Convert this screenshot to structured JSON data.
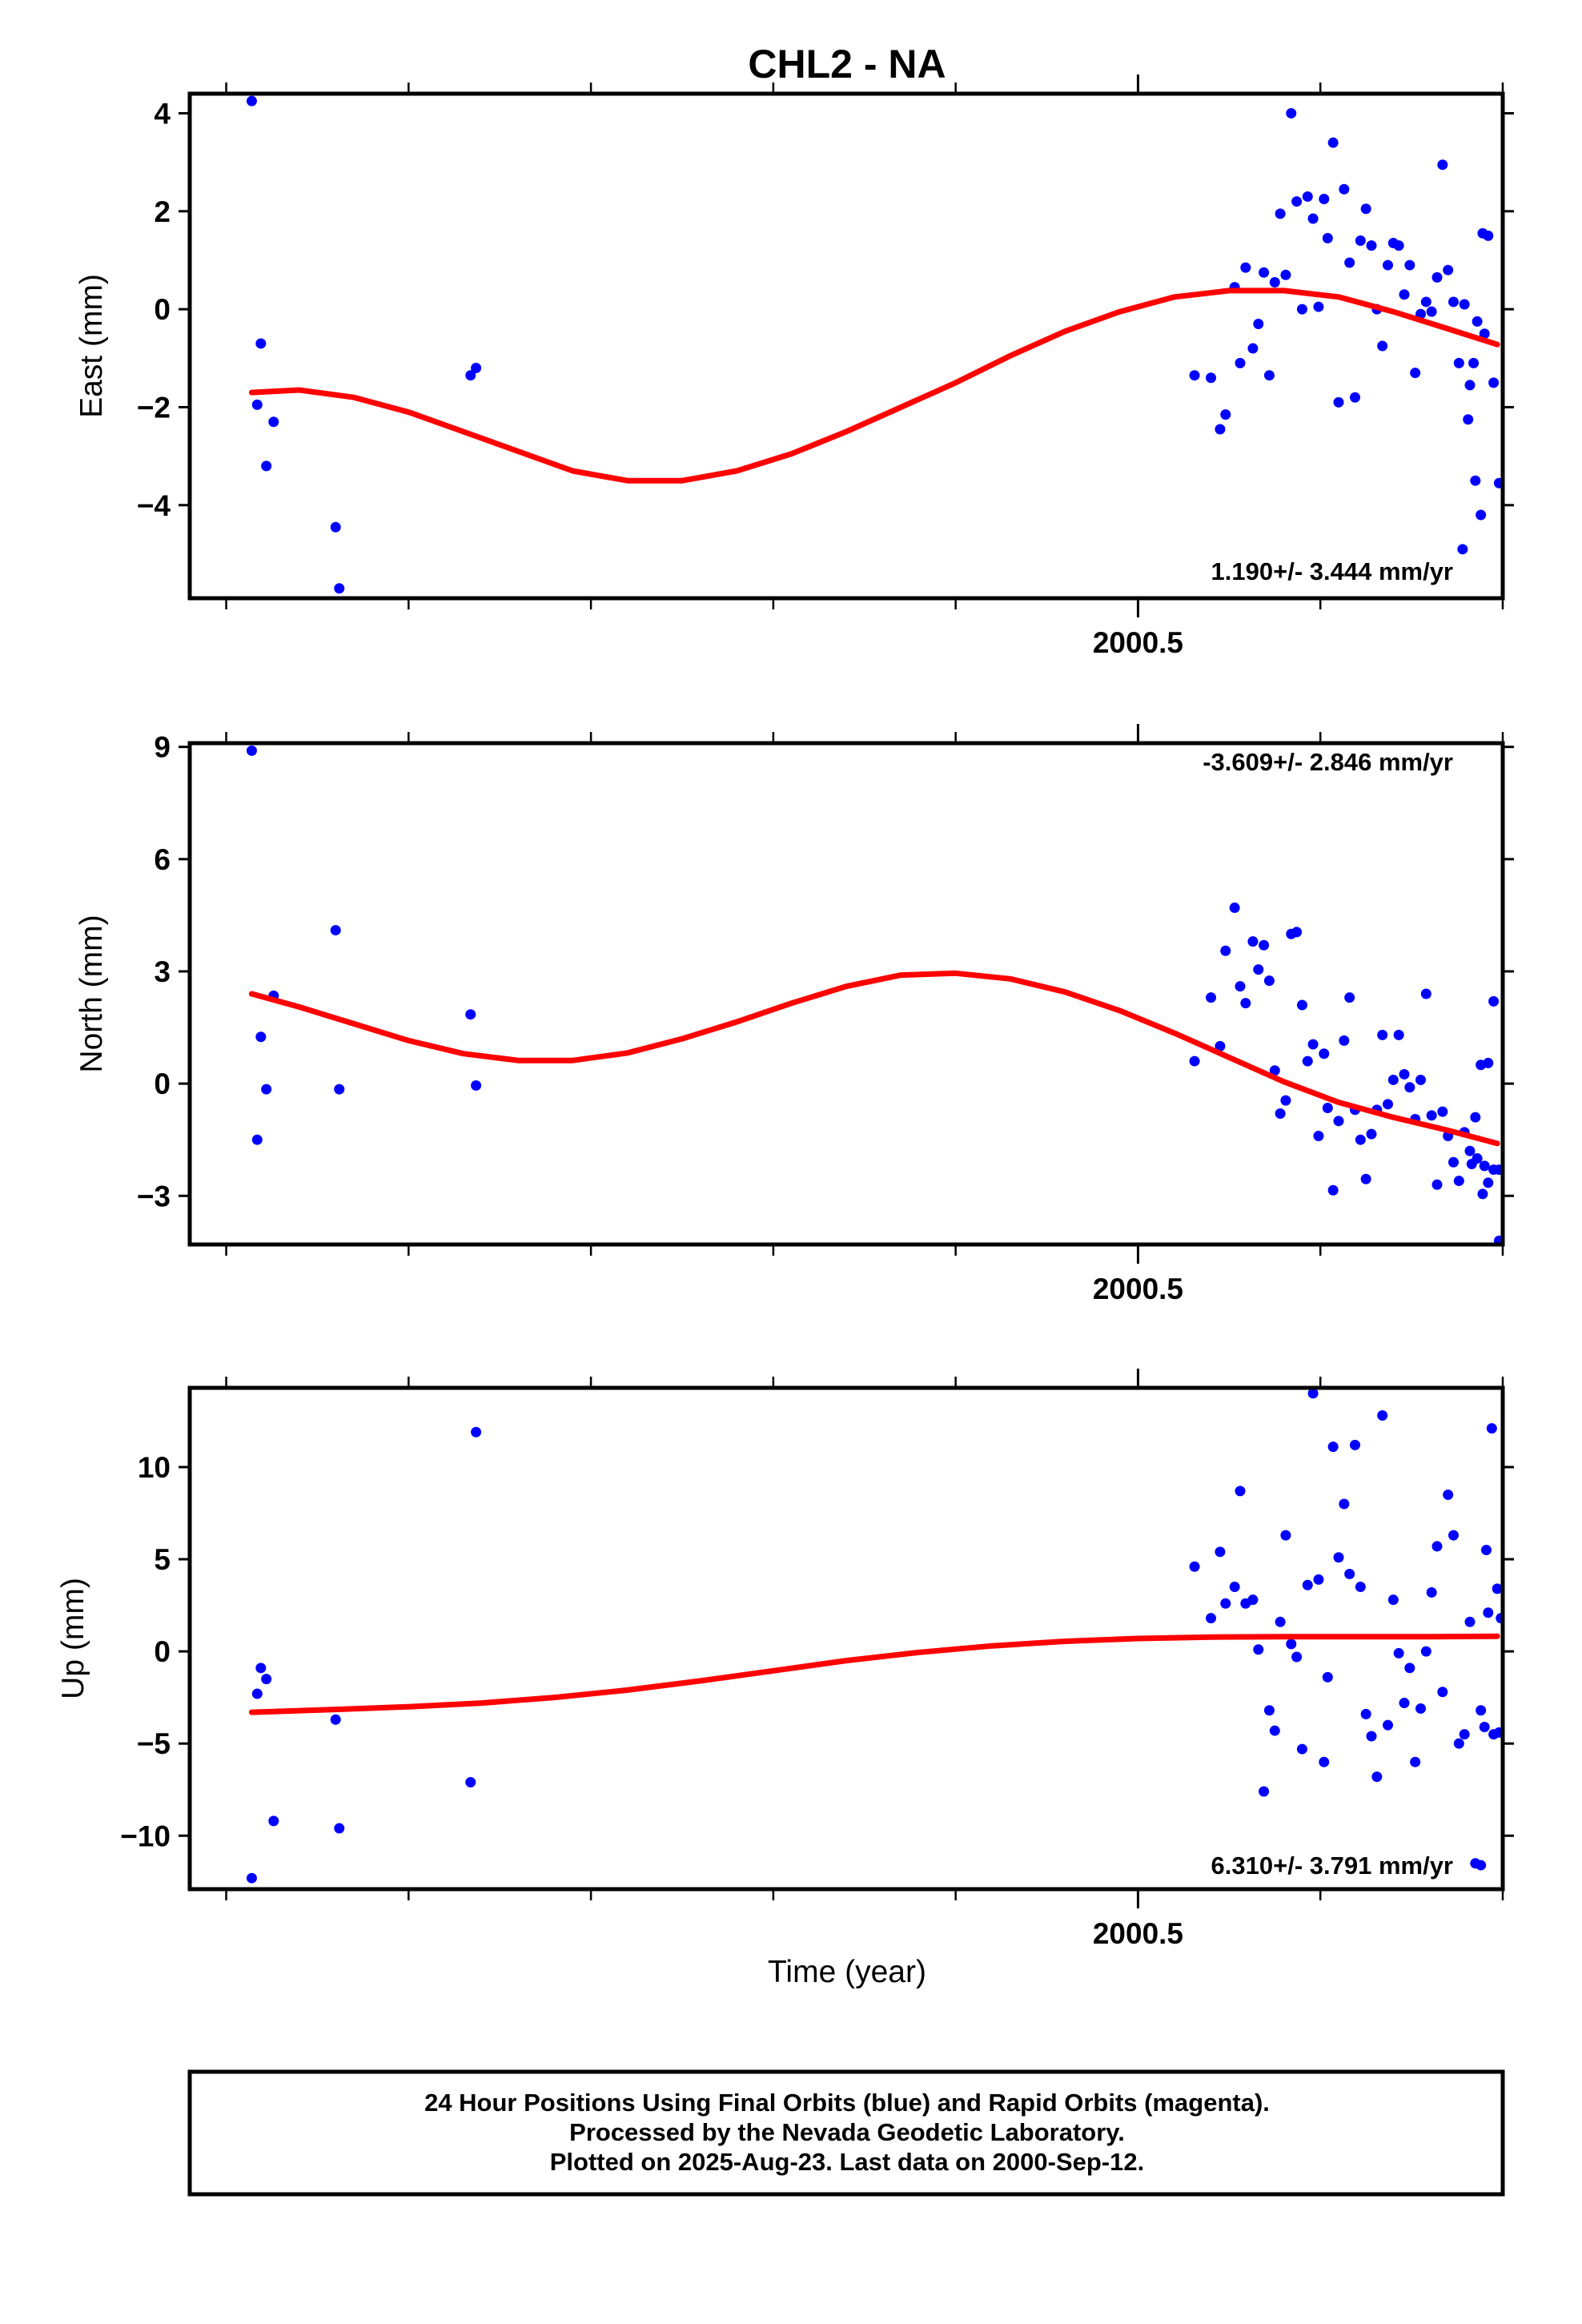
{
  "title": "CHL2 - NA",
  "colors": {
    "observations": "#0000ff",
    "model": "#ff0000",
    "frame": "#000000"
  },
  "xaxis": {
    "label": "Time (year)",
    "labeled_tick": "2000.5",
    "labeled_tick_value": 2000.5
  },
  "footer": {
    "line1": "24 Hour Positions Using Final Orbits (blue) and Rapid Orbits (magenta).",
    "line2": "Processed by the Nevada Geodetic Laboratory.",
    "line3": "Plotted on 2025-Aug-23. Last data on 2000-Sep-12."
  },
  "chart_data": [
    {
      "type": "scatter",
      "ylabel": "East (mm)",
      "rate_text": "1.190+/- 3.444 mm/yr",
      "xlim": [
        1999.98,
        2000.7
      ],
      "ylim": [
        -5.9,
        4.4
      ],
      "yticks": [
        -4,
        -2,
        0,
        2,
        4
      ],
      "yticklabels": [
        "−4",
        "−2",
        "0",
        "2",
        "4"
      ],
      "xticks": [
        2000.0,
        2000.1,
        2000.2,
        2000.3,
        2000.4,
        2000.5,
        2000.6,
        2000.7
      ],
      "series": [
        {
          "kind": "points",
          "x": [
            2000.014,
            2000.017,
            2000.019,
            2000.022,
            2000.026,
            2000.06,
            2000.062,
            2000.134,
            2000.137,
            2000.531,
            2000.54,
            2000.545,
            2000.548,
            2000.553,
            2000.556,
            2000.559,
            2000.563,
            2000.566,
            2000.569,
            2000.572,
            2000.575,
            2000.578,
            2000.581,
            2000.584,
            2000.587,
            2000.59,
            2000.593,
            2000.596,
            2000.599,
            2000.602,
            2000.604,
            2000.607,
            2000.61,
            2000.613,
            2000.616,
            2000.619,
            2000.622,
            2000.625,
            2000.628,
            2000.631,
            2000.634,
            2000.637,
            2000.64,
            2000.643,
            2000.646,
            2000.649,
            2000.652,
            2000.655,
            2000.658,
            2000.661,
            2000.664,
            2000.667,
            2000.67,
            2000.673,
            2000.676,
            2000.679,
            2000.682,
            2000.685,
            2000.688,
            2000.69
          ],
          "y": [
            4.25,
            -1.95,
            -0.7,
            -3.2,
            -2.3,
            -4.45,
            -5.7,
            -1.35,
            -1.2,
            -1.35,
            -1.4,
            -2.45,
            -2.15,
            0.45,
            -1.1,
            0.85,
            -0.8,
            -0.3,
            0.75,
            -1.35,
            0.55,
            1.95,
            0.7,
            4.0,
            2.2,
            -0.0,
            2.3,
            1.85,
            0.05,
            2.25,
            1.45,
            3.4,
            -1.9,
            2.45,
            0.95,
            -1.8,
            1.4,
            2.05,
            1.3,
            0.0,
            -0.75,
            0.9,
            1.35,
            1.3,
            0.3,
            0.9,
            -1.3,
            -0.1,
            0.15,
            -0.05,
            0.65,
            2.95,
            0.8,
            0.15,
            -1.1,
            0.1,
            -1.55,
            -3.5,
            -4.2,
            -0.5
          ]
        },
        {
          "kind": "points",
          "x": [
            2000.678,
            2000.681,
            2000.684,
            2000.686,
            2000.689,
            2000.692,
            2000.695
          ],
          "y": [
            -4.9,
            -2.25,
            -1.1,
            -0.25,
            1.55,
            1.5,
            -1.5
          ]
        },
        {
          "kind": "line",
          "name": "model",
          "x": [
            2000.014,
            2000.04,
            2000.07,
            2000.1,
            2000.13,
            2000.16,
            2000.19,
            2000.22,
            2000.25,
            2000.28,
            2000.31,
            2000.34,
            2000.37,
            2000.4,
            2000.43,
            2000.46,
            2000.49,
            2000.52,
            2000.55,
            2000.58,
            2000.61,
            2000.64,
            2000.67,
            2000.697
          ],
          "y": [
            -1.7,
            -1.65,
            -1.8,
            -2.1,
            -2.5,
            -2.9,
            -3.3,
            -3.5,
            -3.5,
            -3.3,
            -2.95,
            -2.5,
            -2.0,
            -1.5,
            -0.95,
            -0.45,
            -0.05,
            0.25,
            0.38,
            0.38,
            0.25,
            -0.05,
            -0.4,
            -0.72
          ]
        }
      ],
      "extra_points_x": [
        2000.698
      ],
      "extra_points_y": [
        -3.55
      ]
    },
    {
      "type": "scatter",
      "ylabel": "North (mm)",
      "rate_text": "-3.609+/- 2.846 mm/yr",
      "xlim": [
        1999.98,
        2000.7
      ],
      "ylim": [
        -4.3,
        9.1
      ],
      "yticks": [
        -3,
        0,
        3,
        6,
        9
      ],
      "yticklabels": [
        "−3",
        "0",
        "3",
        "6",
        "9"
      ],
      "xticks": [
        2000.0,
        2000.1,
        2000.2,
        2000.3,
        2000.4,
        2000.5,
        2000.6,
        2000.7
      ],
      "series": [
        {
          "kind": "points",
          "x": [
            2000.014,
            2000.017,
            2000.019,
            2000.022,
            2000.026,
            2000.06,
            2000.062,
            2000.134,
            2000.137,
            2000.531,
            2000.54,
            2000.545,
            2000.548,
            2000.553,
            2000.556,
            2000.559,
            2000.563,
            2000.566,
            2000.569,
            2000.572,
            2000.575,
            2000.578,
            2000.581,
            2000.584,
            2000.587,
            2000.59,
            2000.593,
            2000.596,
            2000.599,
            2000.602,
            2000.604,
            2000.607,
            2000.61,
            2000.613,
            2000.616,
            2000.619,
            2000.622,
            2000.625,
            2000.628,
            2000.631,
            2000.634,
            2000.637,
            2000.64,
            2000.643,
            2000.646,
            2000.649,
            2000.652,
            2000.655,
            2000.658,
            2000.661,
            2000.664,
            2000.667,
            2000.67,
            2000.673,
            2000.676,
            2000.679,
            2000.682,
            2000.685,
            2000.688,
            2000.69,
            2000.692,
            2000.695,
            2000.698
          ],
          "y": [
            8.9,
            -1.5,
            1.25,
            -0.15,
            2.35,
            4.1,
            -0.15,
            1.85,
            -0.05,
            0.6,
            2.3,
            1.0,
            3.55,
            4.7,
            2.6,
            2.15,
            3.8,
            3.05,
            3.7,
            2.75,
            0.35,
            -0.8,
            -0.45,
            4.0,
            4.05,
            2.1,
            0.6,
            1.05,
            -1.4,
            0.8,
            -0.65,
            -2.85,
            -1.0,
            1.15,
            2.3,
            -0.7,
            -1.5,
            -2.55,
            -1.35,
            -0.7,
            1.3,
            -0.55,
            0.1,
            1.3,
            0.25,
            -0.1,
            -0.95,
            0.1,
            2.4,
            -0.85,
            -2.7,
            -0.75,
            -1.4,
            -2.1,
            -2.6,
            -1.3,
            -1.8,
            -0.9,
            0.5,
            -2.2,
            0.55,
            2.2,
            -4.2
          ]
        },
        {
          "kind": "points",
          "x": [
            2000.683,
            2000.686,
            2000.689,
            2000.692,
            2000.695,
            2000.698
          ],
          "y": [
            -2.15,
            -2.0,
            -2.95,
            -2.65,
            -2.3,
            -2.3
          ]
        },
        {
          "kind": "line",
          "name": "model",
          "x": [
            2000.014,
            2000.04,
            2000.07,
            2000.1,
            2000.13,
            2000.16,
            2000.19,
            2000.22,
            2000.25,
            2000.28,
            2000.31,
            2000.34,
            2000.37,
            2000.4,
            2000.43,
            2000.46,
            2000.49,
            2000.52,
            2000.55,
            2000.58,
            2000.61,
            2000.64,
            2000.67,
            2000.697
          ],
          "y": [
            2.4,
            2.05,
            1.6,
            1.15,
            0.8,
            0.62,
            0.62,
            0.82,
            1.2,
            1.65,
            2.15,
            2.6,
            2.9,
            2.95,
            2.8,
            2.45,
            1.95,
            1.35,
            0.7,
            0.05,
            -0.5,
            -0.9,
            -1.25,
            -1.6
          ]
        }
      ]
    },
    {
      "type": "scatter",
      "xlabel": "Time (year)",
      "ylabel": "Up (mm)",
      "rate_text": "6.310+/- 3.791 mm/yr",
      "xlim": [
        1999.98,
        2000.7
      ],
      "ylim": [
        -12.9,
        14.3
      ],
      "yticks": [
        -10,
        -5,
        0,
        5,
        10
      ],
      "yticklabels": [
        "−10",
        "−5",
        "0",
        "5",
        "10"
      ],
      "xticks": [
        2000.0,
        2000.1,
        2000.2,
        2000.3,
        2000.4,
        2000.5,
        2000.6,
        2000.7
      ],
      "series": [
        {
          "kind": "points",
          "x": [
            2000.014,
            2000.017,
            2000.019,
            2000.022,
            2000.026,
            2000.06,
            2000.062,
            2000.134,
            2000.137,
            2000.531,
            2000.54,
            2000.545,
            2000.548,
            2000.553,
            2000.556,
            2000.559,
            2000.563,
            2000.566,
            2000.569,
            2000.572,
            2000.575,
            2000.578,
            2000.581,
            2000.584,
            2000.587,
            2000.59,
            2000.593,
            2000.596,
            2000.599,
            2000.602,
            2000.604,
            2000.607,
            2000.61,
            2000.613,
            2000.616,
            2000.619,
            2000.622,
            2000.625,
            2000.628,
            2000.631,
            2000.634,
            2000.637,
            2000.64,
            2000.643,
            2000.646,
            2000.649,
            2000.652,
            2000.655,
            2000.658,
            2000.661,
            2000.664,
            2000.667,
            2000.67,
            2000.673,
            2000.676,
            2000.679,
            2000.682,
            2000.685,
            2000.688,
            2000.69,
            2000.692,
            2000.695,
            2000.698
          ],
          "y": [
            -12.3,
            -2.3,
            -0.9,
            -1.5,
            -9.2,
            -3.7,
            -9.6,
            -7.1,
            11.9,
            4.6,
            1.8,
            5.4,
            2.6,
            3.5,
            8.7,
            2.6,
            2.8,
            0.1,
            -7.6,
            -3.2,
            -4.3,
            1.6,
            6.3,
            0.4,
            -0.3,
            -5.3,
            3.6,
            14.0,
            3.9,
            -6.0,
            -1.4,
            11.1,
            5.1,
            8.0,
            4.2,
            11.2,
            3.5,
            -3.4,
            -4.6,
            -6.8,
            12.8,
            -4.0,
            2.8,
            -0.1,
            -2.8,
            -0.9,
            -6.0,
            -3.1,
            0.0,
            3.2,
            5.7,
            -2.2,
            8.5,
            6.3,
            -5.0,
            -4.5,
            1.6,
            -11.5,
            -11.6,
            -4.1,
            2.1,
            -4.5,
            -4.4
          ]
        },
        {
          "kind": "points",
          "x": [
            2000.688,
            2000.691,
            2000.694,
            2000.697,
            2000.699
          ],
          "y": [
            -3.2,
            5.5,
            12.1,
            3.4,
            1.8
          ]
        },
        {
          "kind": "line",
          "name": "model",
          "x": [
            2000.014,
            2000.06,
            2000.1,
            2000.14,
            2000.18,
            2000.22,
            2000.26,
            2000.3,
            2000.34,
            2000.38,
            2000.42,
            2000.46,
            2000.5,
            2000.54,
            2000.58,
            2000.62,
            2000.66,
            2000.697
          ],
          "y": [
            -3.3,
            -3.15,
            -3.0,
            -2.8,
            -2.5,
            -2.1,
            -1.6,
            -1.05,
            -0.5,
            -0.05,
            0.3,
            0.55,
            0.7,
            0.78,
            0.8,
            0.8,
            0.8,
            0.82
          ]
        }
      ]
    }
  ]
}
